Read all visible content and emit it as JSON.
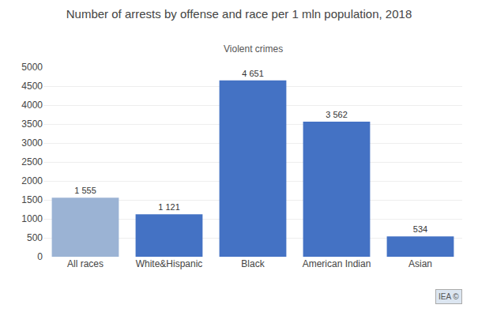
{
  "chart_data": {
    "type": "bar",
    "title": "Number of arrests by offense and race per 1 mln population, 2018",
    "subtitle": "Violent crimes",
    "categories": [
      "All races",
      "White&Hispanic",
      "Black",
      "American Indian",
      "Asian"
    ],
    "values": [
      1555,
      1121,
      4651,
      3562,
      534
    ],
    "value_labels": [
      "1 555",
      "1 121",
      "4 651",
      "3 562",
      "534"
    ],
    "data_labels": true,
    "colors": [
      "#9bb3d4",
      "#4472c4",
      "#4472c4",
      "#4472c4",
      "#4472c4"
    ],
    "ylim": [
      0,
      5000
    ],
    "yticks": [
      0,
      500,
      1000,
      1500,
      2000,
      2500,
      3000,
      3500,
      4000,
      4500,
      5000
    ],
    "grid": true,
    "annotations": [
      "IEA ©"
    ]
  }
}
